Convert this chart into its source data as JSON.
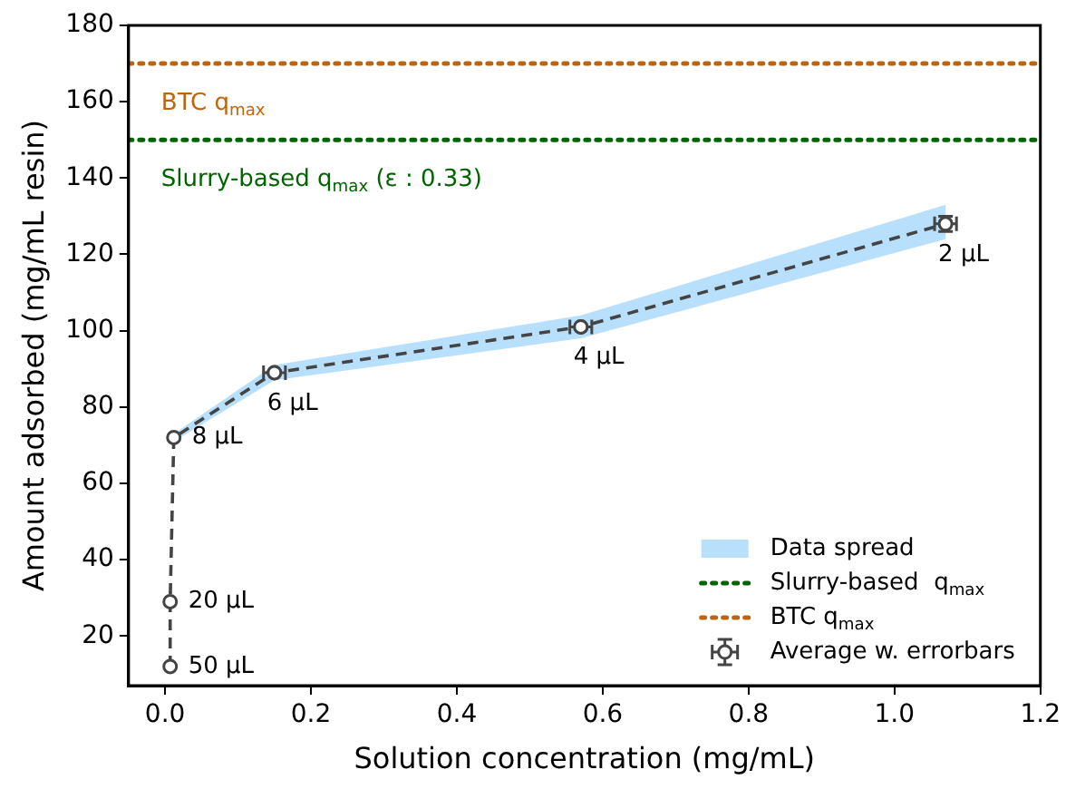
{
  "chart_data": {
    "type": "line",
    "xlabel": "Solution concentration (mg/mL)",
    "ylabel": "Amount adsorbed (mg/mL resin)",
    "xlim": [
      -0.05,
      1.2
    ],
    "ylim": [
      7,
      180
    ],
    "xticks": [
      {
        "value": 0,
        "label": "0.0"
      },
      0.2,
      0.4,
      0.6,
      0.8,
      {
        "value": 1,
        "label": "1.0"
      },
      1.2
    ],
    "yticks": [
      20,
      40,
      60,
      80,
      100,
      120,
      140,
      160,
      180
    ],
    "grid": false,
    "legend": "bottom right",
    "series": [
      {
        "name": "Data spread",
        "type": "area",
        "color": "#a6d8fb"
      },
      {
        "name": "Slurry-based  q$_{max}$",
        "color": "#006400",
        "line_style": "dotted",
        "marker": "none",
        "x": [
          -0.05,
          1.2
        ],
        "values": [
          150,
          150
        ]
      },
      {
        "name": "BTC q$_{max}$",
        "color": "#c0640c",
        "line_style": "dotted",
        "marker": "none",
        "x": [
          -0.05,
          1.2
        ],
        "values": [
          170,
          170
        ]
      },
      {
        "name": "Average w. errorbars",
        "color": "#444444",
        "line_style": "dashed",
        "marker": "circle",
        "x": [
          0.007,
          0.007,
          0.012,
          0.15,
          0.57,
          1.07
        ],
        "values": [
          12,
          29,
          72,
          89,
          101,
          128
        ],
        "lower": [
          11,
          28,
          71,
          87,
          98,
          124
        ],
        "upper": [
          13,
          30,
          73,
          91,
          104,
          133
        ],
        "errors": [
          null,
          null,
          null,
          null,
          null,
          2
        ],
        "xerrors": [
          null,
          null,
          null,
          0.015,
          0.015,
          0.015
        ]
      }
    ],
    "annotations": [
      "Slurry-based q$_{max}$ (ε : 0.33)",
      "BTC q$_{max}$",
      {
        "text": "50 µL",
        "x": 0.007,
        "y": 12
      },
      {
        "text": "20 µL",
        "x": 0.007,
        "y": 29
      },
      {
        "text": "8 µL",
        "x": 0.012,
        "y": 72
      },
      {
        "text": "6 µL",
        "x": 0.15,
        "y": 89
      },
      {
        "text": "4 µL",
        "x": 0.57,
        "y": 101
      },
      {
        "text": "2 µL",
        "x": 1.07,
        "y": 128
      }
    ]
  }
}
